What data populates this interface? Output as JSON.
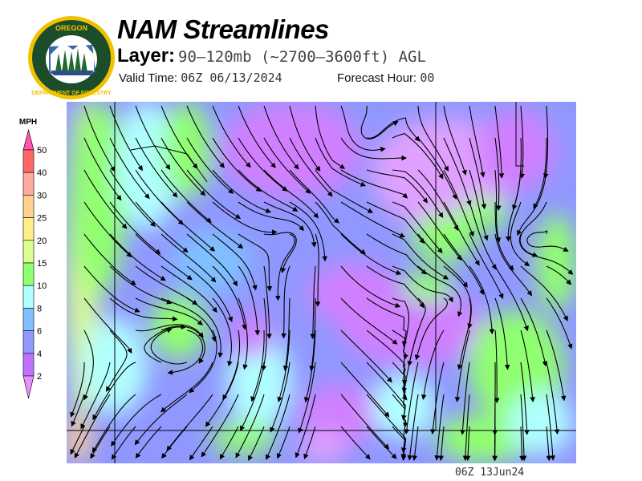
{
  "logo": {
    "top_text": "OREGON",
    "bottom_text": "DEPARTMENT OF FORESTRY",
    "colors": {
      "ring": "#f2c200",
      "field": "#1b4d2b",
      "sky": "#3a67a8"
    }
  },
  "header": {
    "title": "NAM Streamlines",
    "layer_label": "Layer:",
    "layer_value": "90–120mb (~2700–3600ft) AGL",
    "valid_label": "Valid Time:",
    "valid_value": "06Z 06/13/2024",
    "forecast_label": "Forecast Hour:",
    "forecast_value": "00"
  },
  "legend": {
    "unit": "MPH",
    "levels": [
      {
        "label": "50",
        "color": "#ff6666"
      },
      {
        "label": "40",
        "color": "#ffaaa0"
      },
      {
        "label": "30",
        "color": "#ffd090"
      },
      {
        "label": "25",
        "color": "#ffee88"
      },
      {
        "label": "20",
        "color": "#d8ff90"
      },
      {
        "label": "15",
        "color": "#90ff70"
      },
      {
        "label": "10",
        "color": "#b0ffff"
      },
      {
        "label": "8",
        "color": "#80c0ff"
      },
      {
        "label": "6",
        "color": "#9098ff"
      },
      {
        "label": "4",
        "color": "#c070ff"
      },
      {
        "label": "2",
        "color": ""
      }
    ],
    "top_arrow_color": "#ff55aa",
    "bottom_arrow_color": "#e890ff"
  },
  "footer": {
    "timestamp": "06Z 13Jun24"
  }
}
